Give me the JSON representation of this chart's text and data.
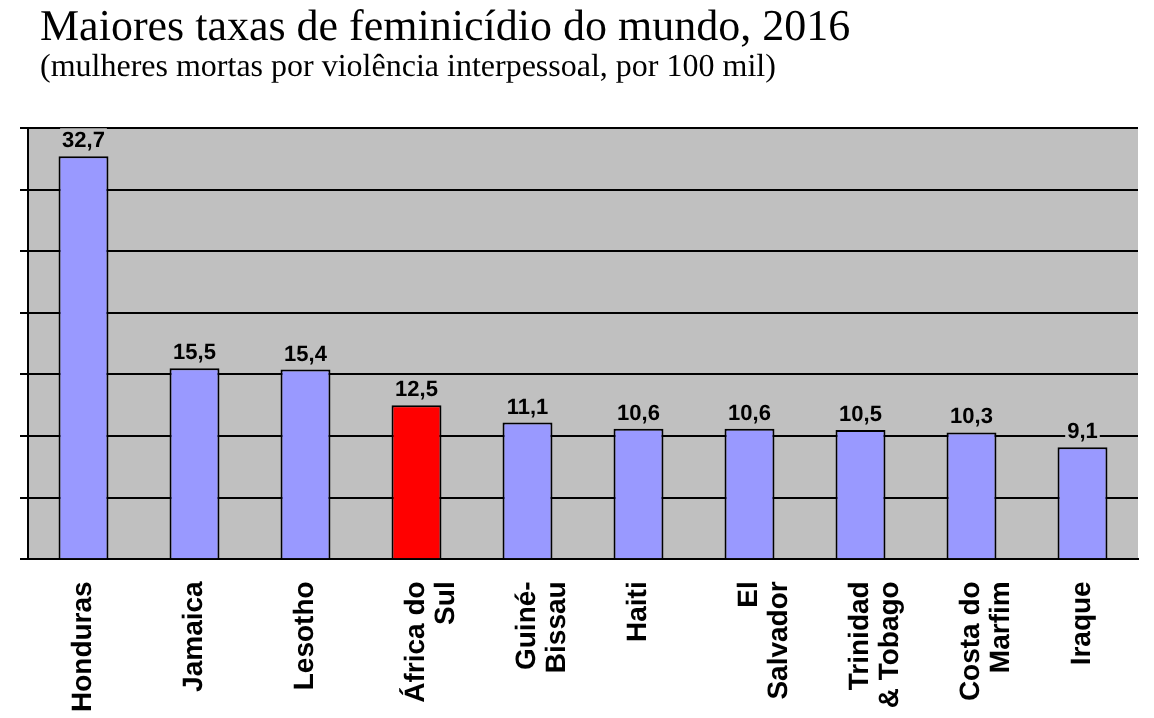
{
  "chart_data": {
    "type": "bar",
    "title": "Maiores taxas de feminicídio do mundo, 2016",
    "subtitle": "(mulheres mortas por violência interpessoal, por 100 mil)",
    "categories": [
      "Honduras",
      "Jamaica",
      "Lesotho",
      "África do Sul",
      "Guiné-Bissau",
      "Haiti",
      "El Salvador",
      "Trinidad & Tobago",
      "Costa do Marfim",
      "Iraque"
    ],
    "values": [
      32.7,
      15.5,
      15.4,
      12.5,
      11.1,
      10.6,
      10.6,
      10.5,
      10.3,
      9.1
    ],
    "colors": [
      "#9999ff",
      "#9999ff",
      "#9999ff",
      "#ff0000",
      "#9999ff",
      "#9999ff",
      "#9999ff",
      "#9999ff",
      "#9999ff",
      "#9999ff"
    ],
    "value_labels": [
      "32,7",
      "15,5",
      "15,4",
      "12,5",
      "11,1",
      "10,6",
      "10,6",
      "10,5",
      "10,3",
      "9,1"
    ],
    "ylim": [
      0,
      35
    ],
    "yticks": [
      {
        "value": 0,
        "label": null
      },
      {
        "value": 5,
        "label": null
      },
      {
        "value": 10,
        "label": null
      },
      {
        "value": 15,
        "label": null
      },
      {
        "value": 20,
        "label": null
      },
      {
        "value": 25,
        "label": null
      },
      {
        "value": 30,
        "label": null
      },
      {
        "value": 35,
        "label": null
      }
    ],
    "grid": "y",
    "legend": false,
    "tick_labels": "x"
  }
}
